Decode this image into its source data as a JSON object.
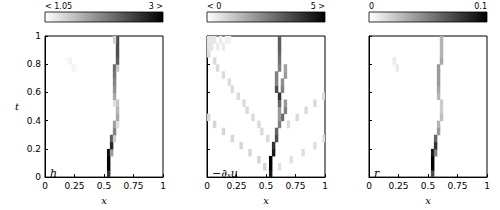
{
  "chart_data": [
    {
      "type": "heatmap",
      "annotation": "h",
      "xlabel": "x",
      "ylabel": "t",
      "xlim": [
        0,
        1
      ],
      "xticks": [
        0,
        0.25,
        0.5,
        0.75,
        1
      ],
      "ylim": [
        0,
        1
      ],
      "yticks": [
        0,
        0.2,
        0.4,
        0.6,
        0.8,
        1
      ],
      "x": [
        0.0125,
        0.0375,
        0.0625,
        0.0875,
        0.1125,
        0.1375,
        0.1625,
        0.1875,
        0.2125,
        0.2375,
        0.2625,
        0.2875,
        0.3125,
        0.3375,
        0.3625,
        0.3875,
        0.4125,
        0.4375,
        0.4625,
        0.4875,
        0.5125,
        0.5375,
        0.5625,
        0.5875,
        0.6125,
        0.6375,
        0.6625,
        0.6875,
        0.7125,
        0.7375,
        0.7625,
        0.7875,
        0.8125,
        0.8375,
        0.8625,
        0.8875,
        0.9125,
        0.9375,
        0.9625,
        0.9875
      ],
      "y": [
        0.025,
        0.075,
        0.125,
        0.175,
        0.225,
        0.275,
        0.325,
        0.375,
        0.425,
        0.475,
        0.525,
        0.575,
        0.625,
        0.675,
        0.725,
        0.775,
        0.825,
        0.875,
        0.925,
        0.975
      ],
      "cells": [
        [
          0.5375,
          0.025,
          2.6
        ],
        [
          0.5375,
          0.075,
          3
        ],
        [
          0.5375,
          0.125,
          3
        ],
        [
          0.5375,
          0.175,
          2.9
        ],
        [
          0.5625,
          0.175,
          1.8
        ],
        [
          0.5625,
          0.225,
          2.7
        ],
        [
          0.5625,
          0.275,
          2.3
        ],
        [
          0.5875,
          0.275,
          1.4
        ],
        [
          0.5875,
          0.325,
          2.0
        ],
        [
          0.5875,
          0.375,
          1.8
        ],
        [
          0.6125,
          0.375,
          1.3
        ],
        [
          0.6125,
          0.425,
          1.7
        ],
        [
          0.6125,
          0.475,
          1.6
        ],
        [
          0.6125,
          0.525,
          1.5
        ],
        [
          0.5875,
          0.525,
          1.3
        ],
        [
          0.5875,
          0.575,
          1.7
        ],
        [
          0.5875,
          0.625,
          1.9
        ],
        [
          0.5875,
          0.675,
          2.0
        ],
        [
          0.5875,
          0.725,
          2.1
        ],
        [
          0.5875,
          0.775,
          2.2
        ],
        [
          0.6125,
          0.775,
          1.5
        ],
        [
          0.6125,
          0.825,
          2.3
        ],
        [
          0.6125,
          0.875,
          2.4
        ],
        [
          0.6125,
          0.925,
          2.4
        ],
        [
          0.6125,
          0.975,
          2.4
        ],
        [
          0.5875,
          0.975,
          1.4
        ],
        [
          0.2125,
          0.825,
          1.15
        ],
        [
          0.2375,
          0.775,
          1.15
        ],
        [
          0.2625,
          0.775,
          1.1
        ],
        [
          0.1875,
          0.825,
          1.1
        ]
      ],
      "colorbar": {
        "range": [
          1.05,
          3
        ],
        "ticks": [
          {
            "value": 1.05,
            "label": "< 1.05"
          },
          {
            "value": 3,
            "label": "3 >"
          }
        ]
      }
    },
    {
      "type": "heatmap",
      "annotation": "−∂ₓu",
      "xlabel": "x",
      "tick_labels": "x",
      "xlim": [
        0,
        1
      ],
      "xticks": [
        0,
        0.25,
        0.5,
        0.75,
        1
      ],
      "ylim": [
        0,
        1
      ],
      "yticks": [
        0,
        0.2,
        0.4,
        0.6,
        0.8,
        1
      ],
      "x": [
        0.0125,
        0.0375,
        0.0625,
        0.0875,
        0.1125,
        0.1375,
        0.1625,
        0.1875,
        0.2125,
        0.2375,
        0.2625,
        0.2875,
        0.3125,
        0.3375,
        0.3625,
        0.3875,
        0.4125,
        0.4375,
        0.4625,
        0.4875,
        0.5125,
        0.5375,
        0.5625,
        0.5875,
        0.6125,
        0.6375,
        0.6625,
        0.6875,
        0.7125,
        0.7375,
        0.7625,
        0.7875,
        0.8125,
        0.8375,
        0.8625,
        0.8875,
        0.9125,
        0.9375,
        0.9625,
        0.9875
      ],
      "y": [
        0.025,
        0.075,
        0.125,
        0.175,
        0.225,
        0.275,
        0.325,
        0.375,
        0.425,
        0.475,
        0.525,
        0.575,
        0.625,
        0.675,
        0.725,
        0.775,
        0.825,
        0.875,
        0.925,
        0.975
      ],
      "cells": [
        [
          0.5375,
          0.025,
          4.5
        ],
        [
          0.5375,
          0.075,
          5
        ],
        [
          0.5375,
          0.125,
          5
        ],
        [
          0.5625,
          0.175,
          4.5
        ],
        [
          0.5625,
          0.225,
          4
        ],
        [
          0.5875,
          0.275,
          3.5
        ],
        [
          0.5875,
          0.325,
          3
        ],
        [
          0.6125,
          0.375,
          2.5
        ],
        [
          0.6375,
          0.425,
          3
        ],
        [
          0.6625,
          0.475,
          2.5
        ],
        [
          0.6625,
          0.525,
          2
        ],
        [
          0.6125,
          0.425,
          2
        ],
        [
          0.6125,
          0.475,
          2
        ],
        [
          0.6125,
          0.525,
          3
        ],
        [
          0.6125,
          0.575,
          4
        ],
        [
          0.5875,
          0.625,
          3.5
        ],
        [
          0.5875,
          0.675,
          2.5
        ],
        [
          0.5875,
          0.725,
          2.5
        ],
        [
          0.6375,
          0.625,
          2.5
        ],
        [
          0.6375,
          0.675,
          2.2
        ],
        [
          0.6625,
          0.725,
          2
        ],
        [
          0.6625,
          0.775,
          1.8
        ],
        [
          0.6125,
          0.775,
          2.5
        ],
        [
          0.6125,
          0.825,
          2.8
        ],
        [
          0.6125,
          0.875,
          3
        ],
        [
          0.6125,
          0.925,
          3.2
        ],
        [
          0.6125,
          0.975,
          3.2
        ],
        [
          0.4875,
          0.075,
          0.8
        ],
        [
          0.4375,
          0.125,
          0.8
        ],
        [
          0.3625,
          0.175,
          0.8
        ],
        [
          0.2875,
          0.225,
          0.8
        ],
        [
          0.2125,
          0.275,
          0.8
        ],
        [
          0.1375,
          0.325,
          0.8
        ],
        [
          0.0625,
          0.375,
          0.8
        ],
        [
          0.0125,
          0.425,
          0.8
        ],
        [
          0.5125,
          0.275,
          0.7
        ],
        [
          0.4625,
          0.325,
          0.7
        ],
        [
          0.4375,
          0.375,
          0.7
        ],
        [
          0.3875,
          0.425,
          0.7
        ],
        [
          0.3375,
          0.475,
          0.7
        ],
        [
          0.3125,
          0.525,
          0.7
        ],
        [
          0.2625,
          0.575,
          0.7
        ],
        [
          0.2125,
          0.625,
          0.7
        ],
        [
          0.1875,
          0.675,
          0.7
        ],
        [
          0.1375,
          0.725,
          0.7
        ],
        [
          0.0875,
          0.775,
          0.7
        ],
        [
          0.0625,
          0.825,
          0.7
        ],
        [
          0.0125,
          0.875,
          0.7
        ],
        [
          0.6125,
          0.075,
          0.6
        ],
        [
          0.7125,
          0.125,
          0.6
        ],
        [
          0.8125,
          0.175,
          0.6
        ],
        [
          0.9125,
          0.225,
          0.6
        ],
        [
          0.9875,
          0.275,
          0.6
        ],
        [
          0.6875,
          0.375,
          0.7
        ],
        [
          0.7625,
          0.425,
          0.7
        ],
        [
          0.8375,
          0.475,
          0.7
        ],
        [
          0.9125,
          0.525,
          0.7
        ],
        [
          0.9875,
          0.575,
          0.7
        ],
        [
          0.0125,
          0.925,
          0.5
        ],
        [
          0.0375,
          0.925,
          0.5
        ],
        [
          0.0625,
          0.975,
          0.5
        ],
        [
          0.0875,
          0.925,
          0.4
        ],
        [
          0.1125,
          0.975,
          0.4
        ],
        [
          0.1375,
          0.925,
          0.4
        ],
        [
          0.0125,
          0.975,
          0.5
        ],
        [
          0.1625,
          0.975,
          0.3
        ],
        [
          0.0375,
          0.975,
          0.5
        ],
        [
          0.1875,
          0.975,
          0.3
        ]
      ],
      "colorbar": {
        "range": [
          0,
          5
        ],
        "ticks": [
          {
            "value": 0,
            "label": "< 0"
          },
          {
            "value": 5,
            "label": "5 >"
          }
        ]
      }
    },
    {
      "type": "heatmap",
      "annotation": "r",
      "xlabel": "x",
      "tick_labels": "x",
      "xlim": [
        0,
        1
      ],
      "xticks": [
        0,
        0.25,
        0.5,
        0.75,
        1
      ],
      "ylim": [
        0,
        1
      ],
      "yticks": [
        0,
        0.2,
        0.4,
        0.6,
        0.8,
        1
      ],
      "x": [
        0.0125,
        0.0375,
        0.0625,
        0.0875,
        0.1125,
        0.1375,
        0.1625,
        0.1875,
        0.2125,
        0.2375,
        0.2625,
        0.2875,
        0.3125,
        0.3375,
        0.3625,
        0.3875,
        0.4125,
        0.4375,
        0.4625,
        0.4875,
        0.5125,
        0.5375,
        0.5625,
        0.5875,
        0.6125,
        0.6375,
        0.6625,
        0.6875,
        0.7125,
        0.7375,
        0.7625,
        0.7875,
        0.8125,
        0.8375,
        0.8625,
        0.8875,
        0.9125,
        0.9375,
        0.9625,
        0.9875
      ],
      "y": [
        0.025,
        0.075,
        0.125,
        0.175,
        0.225,
        0.275,
        0.325,
        0.375,
        0.425,
        0.475,
        0.525,
        0.575,
        0.625,
        0.675,
        0.725,
        0.775,
        0.825,
        0.875,
        0.925,
        0.975
      ],
      "cells": [
        [
          0.5375,
          0.025,
          0.07
        ],
        [
          0.5375,
          0.075,
          0.1
        ],
        [
          0.5375,
          0.125,
          0.1
        ],
        [
          0.5375,
          0.175,
          0.09
        ],
        [
          0.5625,
          0.175,
          0.05
        ],
        [
          0.5625,
          0.225,
          0.08
        ],
        [
          0.5625,
          0.275,
          0.06
        ],
        [
          0.5875,
          0.325,
          0.04
        ],
        [
          0.5875,
          0.375,
          0.03
        ],
        [
          0.6125,
          0.425,
          0.025
        ],
        [
          0.6125,
          0.475,
          0.02
        ],
        [
          0.6125,
          0.525,
          0.02
        ],
        [
          0.5875,
          0.575,
          0.03
        ],
        [
          0.5875,
          0.625,
          0.035
        ],
        [
          0.5875,
          0.675,
          0.04
        ],
        [
          0.5875,
          0.725,
          0.04
        ],
        [
          0.5875,
          0.775,
          0.04
        ],
        [
          0.6125,
          0.825,
          0.035
        ],
        [
          0.6125,
          0.875,
          0.03
        ],
        [
          0.6125,
          0.925,
          0.03
        ],
        [
          0.6125,
          0.975,
          0.03
        ],
        [
          0.2125,
          0.825,
          0.008
        ],
        [
          0.2375,
          0.775,
          0.008
        ]
      ],
      "colorbar": {
        "range": [
          0,
          0.1
        ],
        "ticks": [
          0,
          0.1
        ]
      }
    }
  ]
}
